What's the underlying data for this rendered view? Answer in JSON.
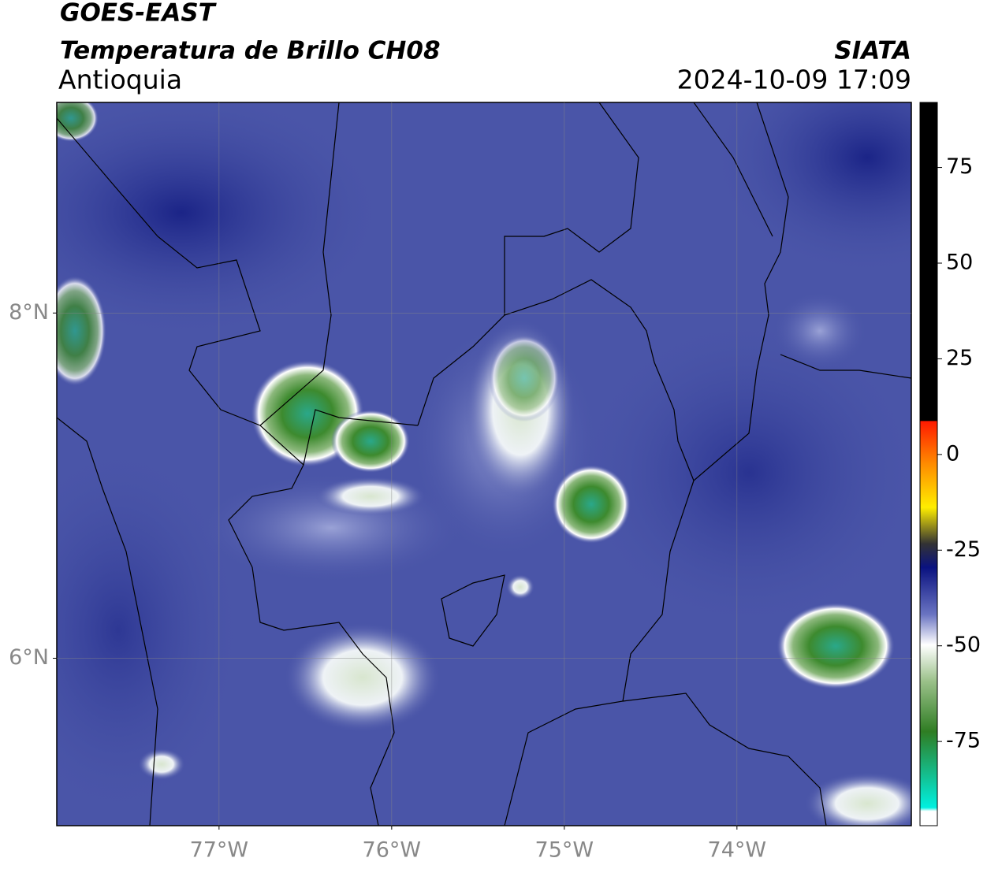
{
  "header": {
    "title": "GOES-EAST",
    "subtitle": "Temperatura de Brillo CH08",
    "region": "Antioquia",
    "source": "SIATA",
    "datetime": "2024-10-09 17:09"
  },
  "map": {
    "xlim": [
      -77.94,
      -72.99
    ],
    "ylim": [
      5.03,
      9.22
    ],
    "xticks": [
      {
        "value": -77,
        "label": "77°W"
      },
      {
        "value": -76,
        "label": "76°W"
      },
      {
        "value": -75,
        "label": "75°W"
      },
      {
        "value": -74,
        "label": "74°W"
      }
    ],
    "yticks": [
      {
        "value": 6,
        "label": "6°N"
      },
      {
        "value": 8,
        "label": "8°N"
      }
    ],
    "grid": true
  },
  "colorbar": {
    "clim": [
      -97,
      92
    ],
    "ticks": [
      75,
      50,
      25,
      0,
      -25,
      -50,
      -75
    ]
  }
}
